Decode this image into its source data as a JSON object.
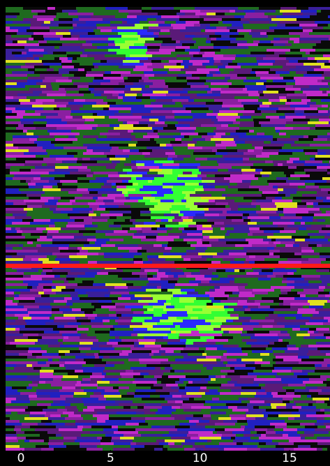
{
  "chart_data": {
    "type": "image",
    "xlim": [
      -0.86,
      17.26
    ],
    "xticks": [
      0,
      5,
      10,
      15
    ]
  }
}
